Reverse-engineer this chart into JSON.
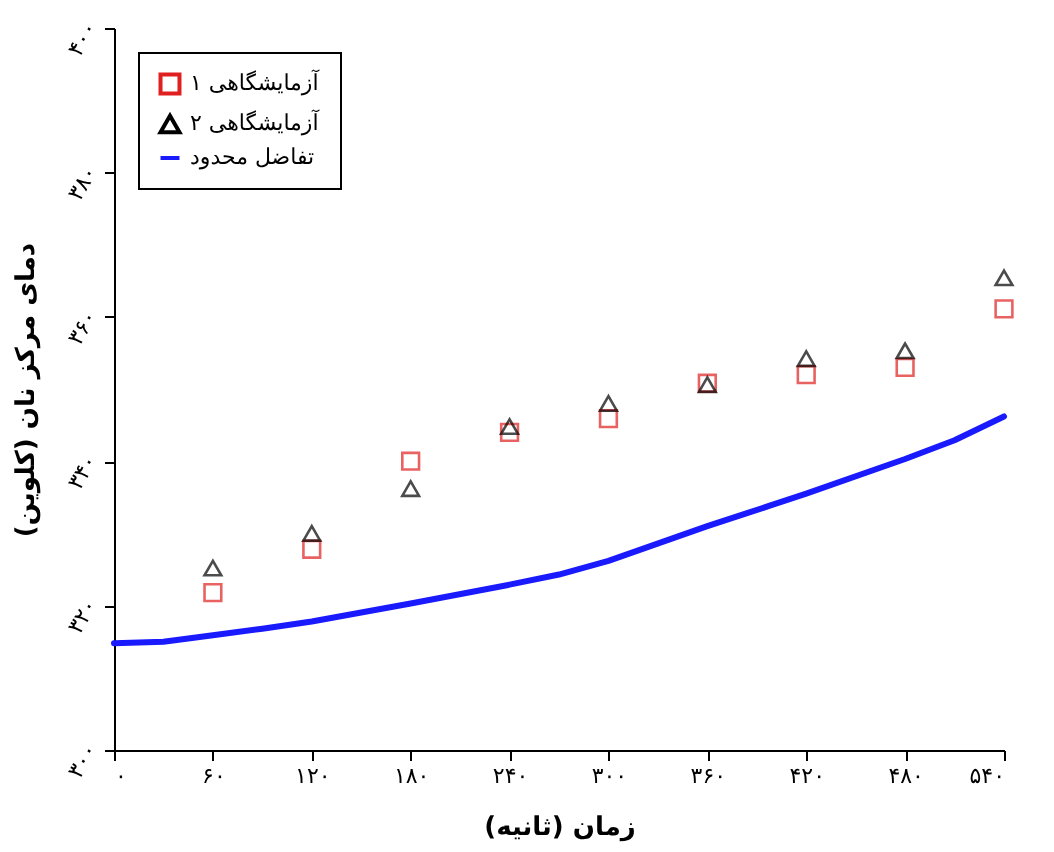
{
  "chart_data": {
    "type": "scatter",
    "xlabel": "زمان (ثانیه)",
    "ylabel": "دمای مرکز نان (کلوین)",
    "x": [
      60,
      120,
      180,
      240,
      300,
      360,
      420,
      480,
      540
    ],
    "series": [
      {
        "name": "آزمایشگاهی ۱",
        "marker": "square",
        "color": "#e02020",
        "values": [
          321.8,
          327.8,
          340,
          344,
          345.9,
          350.8,
          352,
          353,
          361.1
        ]
      },
      {
        "name": "آزمایشگاهی ۲",
        "marker": "triangle",
        "color": "#000000",
        "values": [
          325.2,
          330,
          336.2,
          344.8,
          348,
          350.6,
          354.2,
          355.3,
          365.4
        ]
      },
      {
        "name": "تفاضل محدود",
        "type": "line",
        "line_style": "solid",
        "color": "#1a1aff",
        "x": [
          0,
          30,
          60,
          90,
          120,
          180,
          240,
          270,
          300,
          360,
          420,
          480,
          510,
          540
        ],
        "values": [
          314.8,
          315,
          315.9,
          316.8,
          317.8,
          320.3,
          322.9,
          324.3,
          326.2,
          331,
          335.5,
          340.3,
          342.9,
          346.2
        ]
      }
    ],
    "xlim": [
      0,
      540
    ],
    "xticks": [
      {
        "value": 0,
        "label": "۰"
      },
      {
        "value": 60,
        "label": "۶۰"
      },
      {
        "value": 120,
        "label": "۱۲۰"
      },
      {
        "value": 180,
        "label": "۱۸۰"
      },
      {
        "value": 240,
        "label": "۲۴۰"
      },
      {
        "value": 300,
        "label": "۳۰۰"
      },
      {
        "value": 360,
        "label": "۳۶۰"
      },
      {
        "value": 420,
        "label": "۴۲۰"
      },
      {
        "value": 480,
        "label": "۴۸۰"
      },
      {
        "value": 540,
        "label": "۵۴۰"
      }
    ],
    "ylim": [
      300,
      400
    ],
    "yticks": [
      {
        "value": 300,
        "label": "۳۰۰"
      },
      {
        "value": 320,
        "label": "۳۲۰"
      },
      {
        "value": 340,
        "label": "۳۴۰"
      },
      {
        "value": 360,
        "label": "۳۶۰"
      },
      {
        "value": 380,
        "label": "۳۸۰"
      },
      {
        "value": 400,
        "label": "۴۰۰"
      }
    ],
    "grid": false,
    "legend": "top left"
  }
}
